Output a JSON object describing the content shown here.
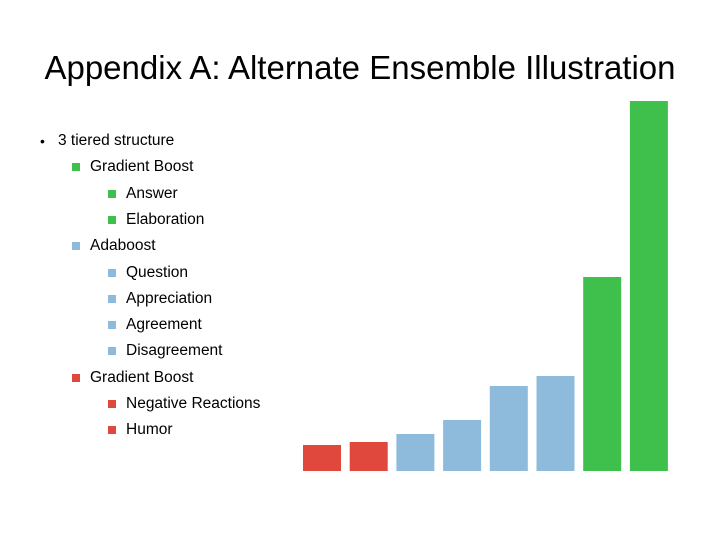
{
  "title": "Appendix A: Alternate Ensemble Illustration",
  "colors": {
    "green": "#3fbf4b",
    "blue": "#8ebbdb",
    "red": "#e0473d"
  },
  "outline": [
    {
      "level": 0,
      "text": "3 tiered structure",
      "marker": "dot"
    },
    {
      "level": 1,
      "text": "Gradient Boost",
      "marker": "green"
    },
    {
      "level": 2,
      "text": "Answer",
      "marker": "green"
    },
    {
      "level": 2,
      "text": "Elaboration",
      "marker": "green"
    },
    {
      "level": 1,
      "text": "Adaboost",
      "marker": "blue"
    },
    {
      "level": 2,
      "text": "Question",
      "marker": "blue"
    },
    {
      "level": 2,
      "text": "Appreciation",
      "marker": "blue"
    },
    {
      "level": 2,
      "text": "Agreement",
      "marker": "blue"
    },
    {
      "level": 2,
      "text": "Disagreement",
      "marker": "blue"
    },
    {
      "level": 1,
      "text": "Gradient Boost",
      "marker": "red"
    },
    {
      "level": 2,
      "text": "Negative Reactions",
      "marker": "red"
    },
    {
      "level": 2,
      "text": "Humor",
      "marker": "red"
    }
  ],
  "chart_data": {
    "type": "bar",
    "values": [
      26,
      29,
      37,
      51,
      85,
      95,
      194,
      370
    ],
    "colors": [
      "red",
      "red",
      "blue",
      "blue",
      "blue",
      "blue",
      "green",
      "green"
    ],
    "ylim": [
      0,
      370
    ],
    "grid": false,
    "title": "",
    "xlabel": "",
    "ylabel": ""
  }
}
